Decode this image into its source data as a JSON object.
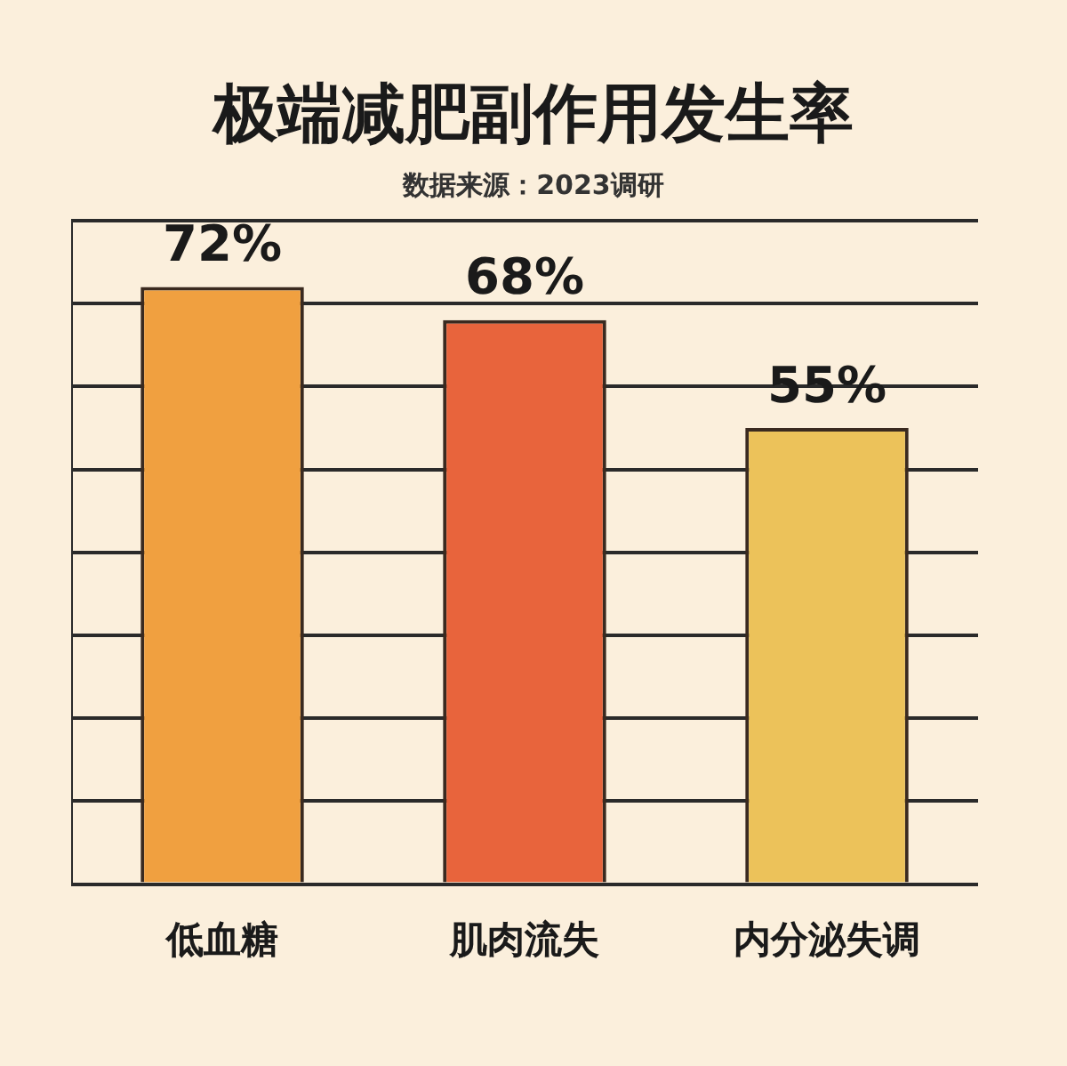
{
  "chart_data": {
    "type": "bar",
    "title": "极端减肥副作用发生率",
    "subtitle": "数据来源：2023调研",
    "categories": [
      "低血糖",
      "肌肉流失",
      "内分泌失调"
    ],
    "values": [
      72,
      68,
      55
    ],
    "colors": [
      "#f0a040",
      "#e8643c",
      "#ecc25a"
    ],
    "value_labels": [
      "72%",
      "68%",
      "55%"
    ],
    "grid": "y",
    "tick_labels": "x",
    "legend": false
  }
}
